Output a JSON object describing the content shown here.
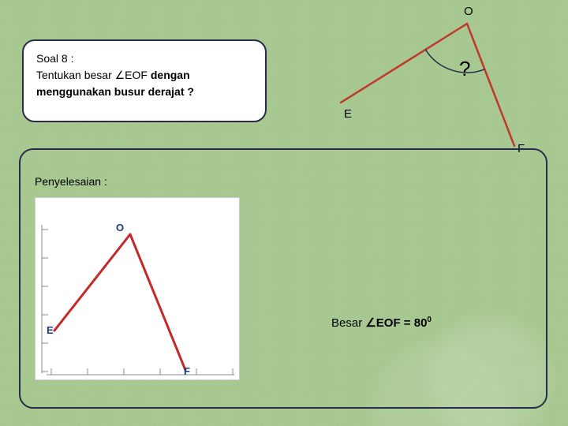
{
  "question": {
    "title": "Soal 8 :",
    "line1_prefix": "Tentukan besar ",
    "line1_angle": "∠EOF",
    "line1_suffix": " dengan",
    "line2": "menggunakan busur derajat ?"
  },
  "angle_diagram": {
    "vertex_label": "O",
    "ray1_label": "E",
    "ray2_label": "F",
    "angle_label": "?",
    "line_color": "#c0392b",
    "arc_color": "#2a2a4a",
    "line_width": 2.5,
    "vertex": [
      180,
      20
    ],
    "ray1_end": [
      20,
      120
    ],
    "ray2_end": [
      240,
      175
    ],
    "arc_radius": 62
  },
  "solution": {
    "heading": "Penyelesaian :",
    "answer_prefix": "Besar ",
    "answer_angle": "∠EOF = 80",
    "answer_sup": "0"
  },
  "protractor": {
    "bg": "#ffffff",
    "line_color": "#c62828",
    "tick_color": "#7f8c9a",
    "label_color": "#1b3a7a",
    "O": "O",
    "E": "E",
    "F": "F",
    "vertex": [
      120,
      46
    ],
    "rayE_end": [
      24,
      168
    ],
    "rayF_end": [
      190,
      218
    ]
  },
  "colors": {
    "frame": "#2a2a4a",
    "bg": "#a6c78f"
  }
}
